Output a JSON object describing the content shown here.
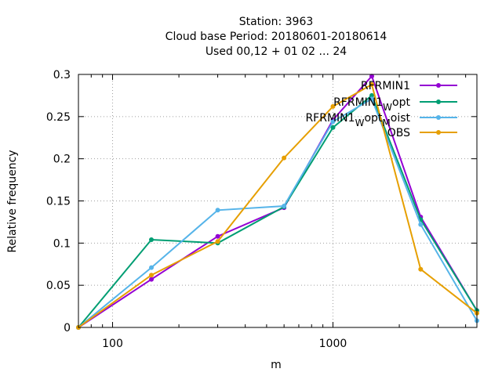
{
  "chart_data": {
    "type": "line",
    "title": [
      "Station:     3963",
      "Cloud base  Period: 20180601-20180614",
      "Used  00,12  + 01 02 ... 24"
    ],
    "xlabel": "m",
    "ylabel": "Relative frequency",
    "xscale": "log",
    "xlim": [
      70,
      4500
    ],
    "ylim": [
      0,
      0.3
    ],
    "xticks": [
      {
        "value": 100,
        "label": "100"
      },
      {
        "value": 1000,
        "label": "1000"
      }
    ],
    "yticks": [
      {
        "value": 0,
        "label": "0"
      },
      {
        "value": 0.05,
        "label": "0.05"
      },
      {
        "value": 0.1,
        "label": "0.1"
      },
      {
        "value": 0.15,
        "label": "0.15"
      },
      {
        "value": 0.2,
        "label": "0.2"
      },
      {
        "value": 0.25,
        "label": "0.25"
      },
      {
        "value": 0.3,
        "label": "0.3"
      }
    ],
    "grid": true,
    "legend_position": "top-right",
    "x": [
      70,
      150,
      300,
      600,
      1000,
      1500,
      2500,
      4500
    ],
    "series": [
      {
        "name": "RFRMIN1",
        "legend_parts": [
          {
            "t": "RFRMIN1"
          }
        ],
        "color": "#9400d3",
        "values": [
          0.0,
          0.057,
          0.108,
          0.142,
          0.246,
          0.298,
          0.131,
          0.02
        ]
      },
      {
        "name": "RFRMIN1_W opt",
        "legend_parts": [
          {
            "t": "RFRMIN1"
          },
          {
            "t": "W",
            "sub": true
          },
          {
            "t": "opt"
          }
        ],
        "color": "#009e73",
        "values": [
          0.0,
          0.104,
          0.1,
          0.143,
          0.237,
          0.275,
          0.128,
          0.02
        ]
      },
      {
        "name": "RFRMIN1_W opt_M oist",
        "legend_parts": [
          {
            "t": "RFRMIN1"
          },
          {
            "t": "W",
            "sub": true
          },
          {
            "t": "opt"
          },
          {
            "t": "M",
            "sub": true
          },
          {
            "t": "oist"
          }
        ],
        "color": "#56b4e9",
        "values": [
          0.0,
          0.071,
          0.139,
          0.144,
          0.244,
          0.271,
          0.122,
          0.008
        ]
      },
      {
        "name": "OBS",
        "legend_parts": [
          {
            "t": "OBS"
          }
        ],
        "color": "#e69f00",
        "values": [
          0.0,
          0.062,
          0.102,
          0.201,
          0.262,
          0.288,
          0.069,
          0.017
        ]
      }
    ]
  }
}
